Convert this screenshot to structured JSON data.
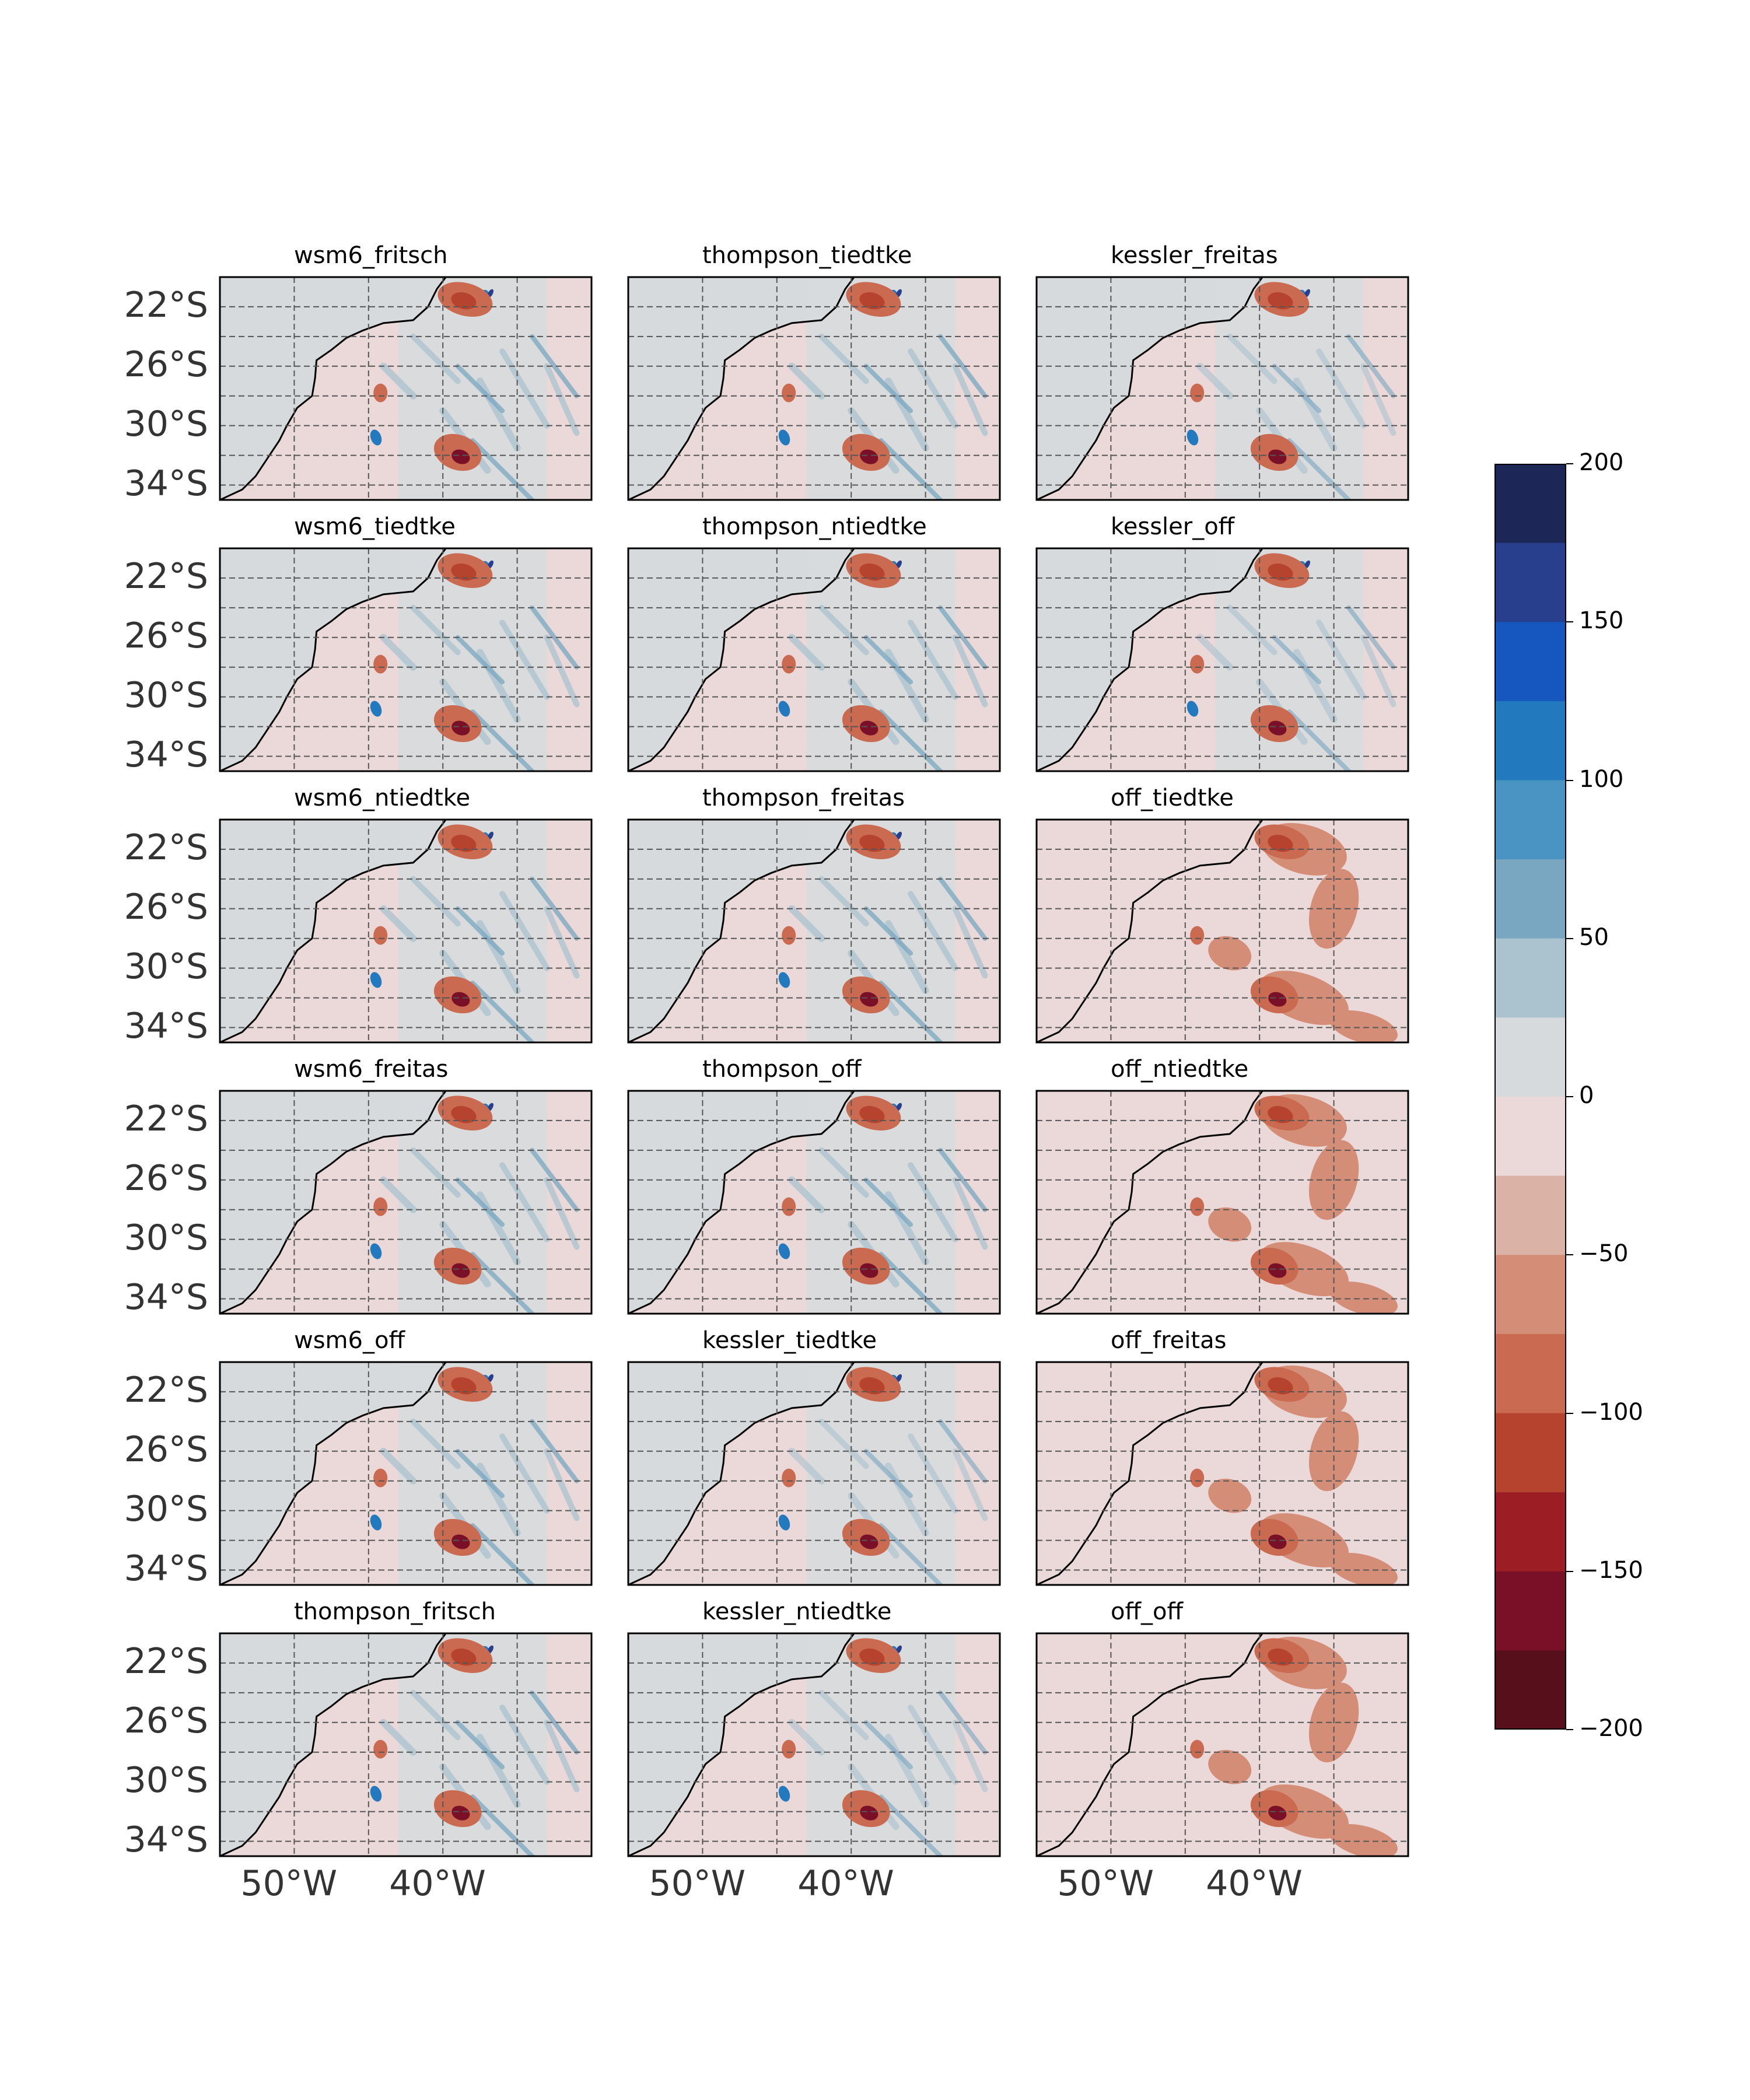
{
  "chart_data": {
    "type": "heatmap",
    "layout": {
      "rows": 6,
      "cols": 3
    },
    "panels": [
      "wsm6_fritsch",
      "thompson_tiedtke",
      "kessler_freitas",
      "wsm6_tiedtke",
      "thompson_ntiedtke",
      "kessler_off",
      "wsm6_ntiedtke",
      "thompson_freitas",
      "off_tiedtke",
      "wsm6_freitas",
      "thompson_off",
      "off_ntiedtke",
      "wsm6_off",
      "kessler_tiedtke",
      "off_freitas",
      "thompson_fritsch",
      "kessler_ntiedtke",
      "off_off"
    ],
    "lat_ticks": [
      "22°S",
      "26°S",
      "30°S",
      "34°S"
    ],
    "lat_tick_values": [
      -22,
      -26,
      -30,
      -34
    ],
    "lon_ticks": [
      "50°W",
      "40°W"
    ],
    "lon_tick_values": [
      -50,
      -40
    ],
    "extent": {
      "lon": [
        -55,
        -30
      ],
      "lat": [
        -35,
        -20
      ]
    },
    "grid": true,
    "colorbar": {
      "ticks": [
        "200",
        "150",
        "100",
        "50",
        "0",
        "−50",
        "−100",
        "−150",
        "−200"
      ],
      "tick_values": [
        200,
        150,
        100,
        50,
        0,
        -50,
        -100,
        -150,
        -200
      ],
      "range": [
        -200,
        200
      ],
      "level_step": 25,
      "colors_top_to_bottom": [
        "#1c2757",
        "#283f8d",
        "#1656bf",
        "#2279bd",
        "#4a94c3",
        "#79a7c1",
        "#abc3cf",
        "#d7dadd",
        "#ead9d8",
        "#dbb2a6",
        "#d48e78",
        "#c96a51",
        "#b6432d",
        "#9c1d23",
        "#7a1028",
        "#580f1c"
      ]
    },
    "styles": {
      "background_negative": "#ead9d8",
      "background_neutral": "#d7dadd",
      "coastline": "#000000",
      "gridline": "#555555"
    }
  }
}
